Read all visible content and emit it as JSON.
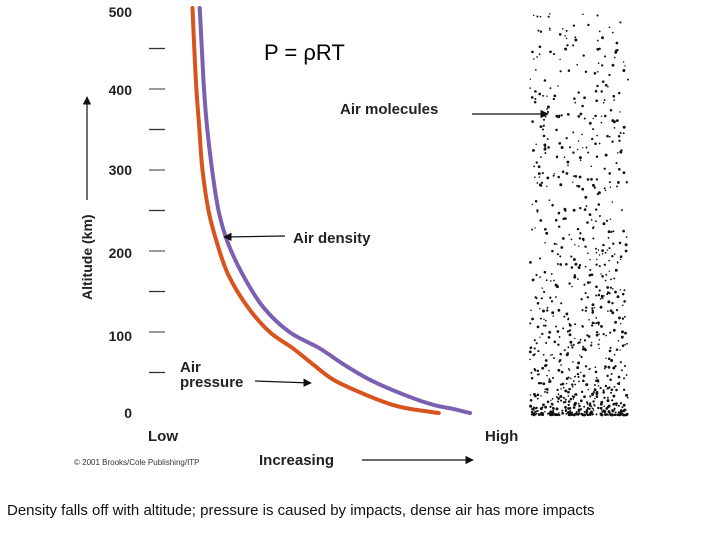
{
  "formula": "P = ρRT",
  "caption": "Density falls off with altitude; pressure is caused by impacts, dense air has more impacts",
  "copyright": "© 2001 Brooks/Cole Publishing/ITP",
  "chart_data": {
    "type": "line",
    "title": "",
    "ylabel": "Altitude (km)",
    "xlabel": "Increasing",
    "x_tick_labels": [
      "Low",
      "High"
    ],
    "y_ticks": [
      0,
      100,
      200,
      300,
      400,
      500
    ],
    "y_tick_labels": [
      "0",
      "100",
      "200",
      "300",
      "400",
      "500"
    ],
    "ylim": [
      0,
      500
    ],
    "xlim": [
      0,
      1
    ],
    "grid": false,
    "colors": {
      "air_pressure": "#d9531e",
      "air_density": "#7b5fb0",
      "molecules": "#111111"
    },
    "series": [
      {
        "name": "Air pressure",
        "label": "Air\npressure",
        "x": [
          0.897,
          0.802,
          0.745,
          0.672,
          0.554,
          0.482,
          0.415,
          0.339,
          0.268,
          0.203,
          0.165,
          0.137,
          0.117,
          0.107,
          0.097,
          0.09,
          0.084
        ],
        "y": [
          0,
          5,
          10,
          20,
          40,
          60,
          80,
          100,
          130,
          170,
          210,
          250,
          300,
          350,
          400,
          450,
          500
        ]
      },
      {
        "name": "Air density",
        "label": "Air density",
        "x": [
          1.0,
          0.945,
          0.88,
          0.8,
          0.675,
          0.583,
          0.503,
          0.404,
          0.319,
          0.251,
          0.201,
          0.17,
          0.149,
          0.133,
          0.122,
          0.115,
          0.108
        ],
        "y": [
          0,
          5,
          10,
          20,
          40,
          60,
          80,
          100,
          130,
          170,
          210,
          250,
          300,
          350,
          400,
          450,
          500
        ]
      }
    ],
    "annotations": [
      {
        "text": "Air molecules",
        "target": "molecule-column"
      },
      {
        "text": "Air density",
        "target": "density-curve"
      },
      {
        "text": "Air pressure",
        "target": "pressure-curve"
      }
    ]
  }
}
